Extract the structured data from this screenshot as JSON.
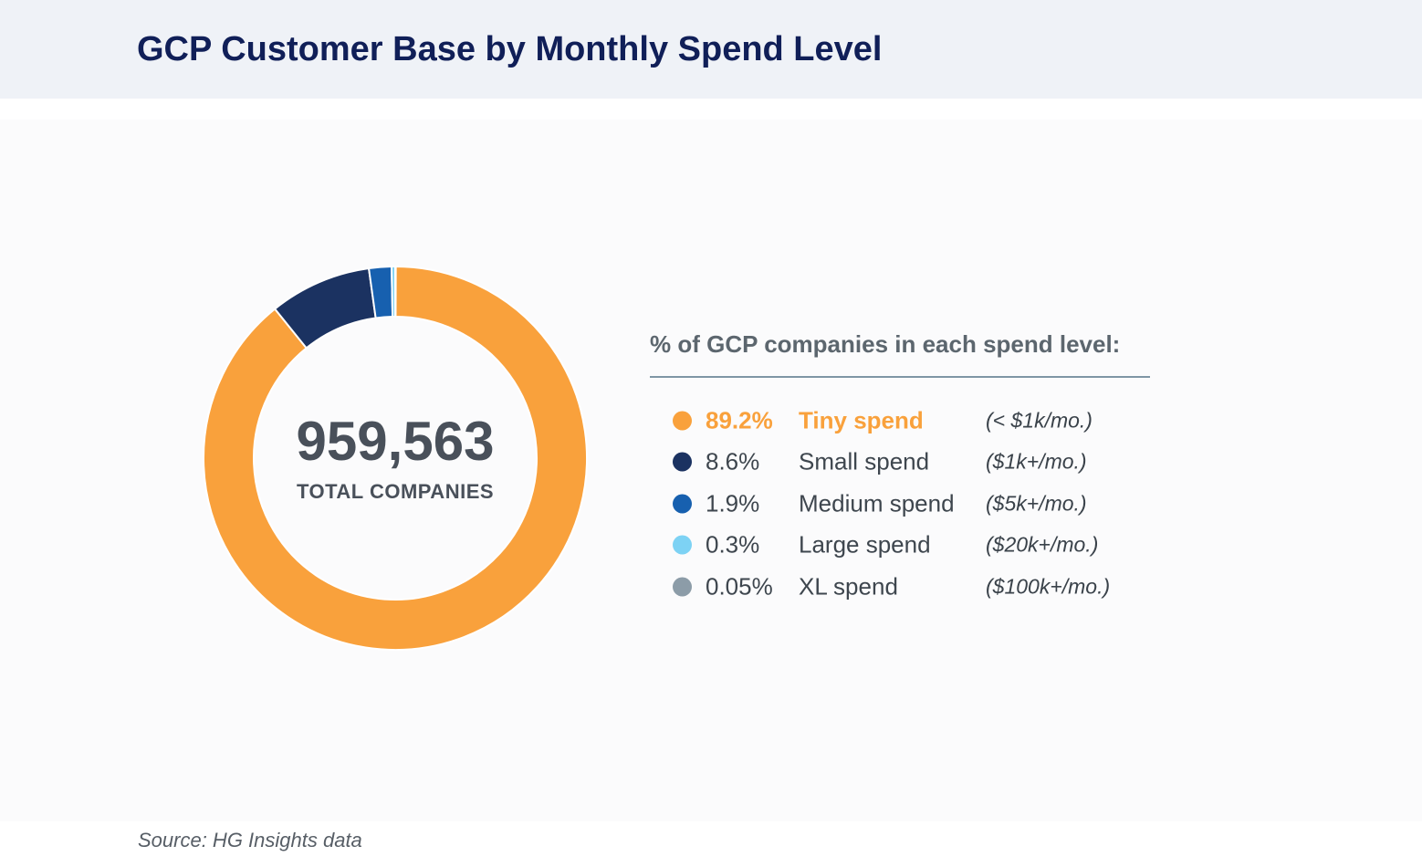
{
  "header": {
    "title": "GCP Customer Base by Monthly Spend Level"
  },
  "chart_data": {
    "type": "pie",
    "subtype": "donut",
    "title": "GCP Customer Base by Monthly Spend Level",
    "center_value": 959563,
    "center_value_display": "959,563",
    "center_label": "TOTAL COMPANIES",
    "legend_title": "% of GCP companies in each spend level:",
    "legend_position": "right",
    "start_angle": "top",
    "direction": "clockwise",
    "inner_radius_ratio": 0.74,
    "segment_gap_color": "#FFFFFF",
    "segments": [
      {
        "label": "Tiny spend",
        "qualifier": "(< $1k/mo.)",
        "percent": 89.2,
        "percent_display": "89.2%",
        "color": "#F9A13C",
        "emphasized": true
      },
      {
        "label": "Small spend",
        "qualifier": "($1k+/mo.)",
        "percent": 8.6,
        "percent_display": "8.6%",
        "color": "#1B3261",
        "emphasized": false
      },
      {
        "label": "Medium spend",
        "qualifier": "($5k+/mo.)",
        "percent": 1.9,
        "percent_display": "1.9%",
        "color": "#1760AF",
        "emphasized": false
      },
      {
        "label": "Large spend",
        "qualifier": "($20k+/mo.)",
        "percent": 0.3,
        "percent_display": "0.3%",
        "color": "#7DD2F4",
        "emphasized": false
      },
      {
        "label": "XL spend",
        "qualifier": "($100k+/mo.)",
        "percent": 0.05,
        "percent_display": "0.05%",
        "color": "#8C9CA8",
        "emphasized": false
      }
    ]
  },
  "source": {
    "text": "Source: HG Insights data"
  },
  "colors": {
    "header_background": "#EFF2F7",
    "content_background": "#FBFBFC",
    "title_text": "#101F58",
    "center_text": "#49505A",
    "legend_title_text": "#5C666E",
    "legend_text": "#3E464E",
    "divider": "#7F96A5",
    "accent_orange": "#F9A13C"
  }
}
